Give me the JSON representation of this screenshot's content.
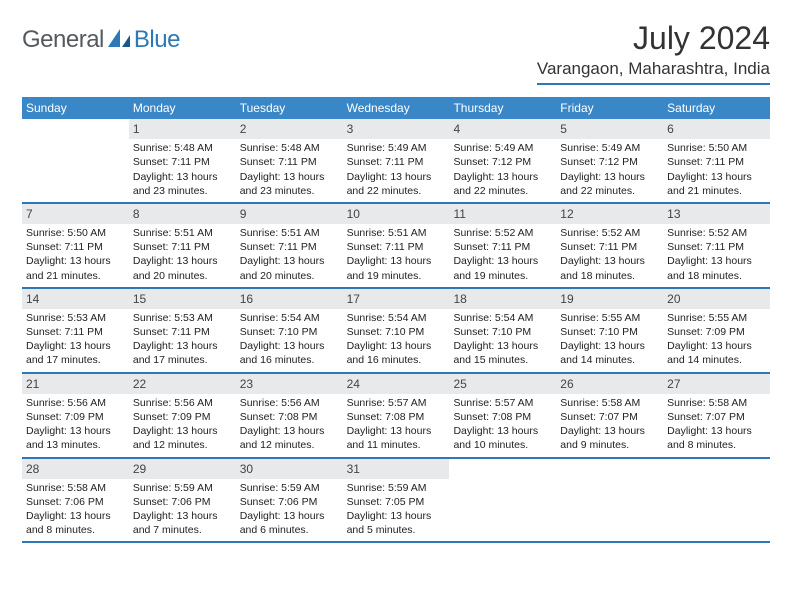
{
  "brand": {
    "text1": "General",
    "text2": "Blue"
  },
  "title": "July 2024",
  "location": "Varangaon, Maharashtra, India",
  "colors": {
    "header_bar": "#3a87c8",
    "divider": "#2f78b7",
    "day_number_bg": "#e8e9ea",
    "text": "#222222",
    "logo_gray": "#555a5f",
    "logo_blue": "#2f78b7"
  },
  "fonts": {
    "title_size_pt": 24,
    "location_size_pt": 13,
    "day_header_size_pt": 9,
    "cell_size_pt": 8
  },
  "day_headers": [
    "Sunday",
    "Monday",
    "Tuesday",
    "Wednesday",
    "Thursday",
    "Friday",
    "Saturday"
  ],
  "weeks": [
    [
      null,
      {
        "n": "1",
        "sunrise": "5:48 AM",
        "sunset": "7:11 PM",
        "dl": "13 hours and 23 minutes."
      },
      {
        "n": "2",
        "sunrise": "5:48 AM",
        "sunset": "7:11 PM",
        "dl": "13 hours and 23 minutes."
      },
      {
        "n": "3",
        "sunrise": "5:49 AM",
        "sunset": "7:11 PM",
        "dl": "13 hours and 22 minutes."
      },
      {
        "n": "4",
        "sunrise": "5:49 AM",
        "sunset": "7:12 PM",
        "dl": "13 hours and 22 minutes."
      },
      {
        "n": "5",
        "sunrise": "5:49 AM",
        "sunset": "7:12 PM",
        "dl": "13 hours and 22 minutes."
      },
      {
        "n": "6",
        "sunrise": "5:50 AM",
        "sunset": "7:11 PM",
        "dl": "13 hours and 21 minutes."
      }
    ],
    [
      {
        "n": "7",
        "sunrise": "5:50 AM",
        "sunset": "7:11 PM",
        "dl": "13 hours and 21 minutes."
      },
      {
        "n": "8",
        "sunrise": "5:51 AM",
        "sunset": "7:11 PM",
        "dl": "13 hours and 20 minutes."
      },
      {
        "n": "9",
        "sunrise": "5:51 AM",
        "sunset": "7:11 PM",
        "dl": "13 hours and 20 minutes."
      },
      {
        "n": "10",
        "sunrise": "5:51 AM",
        "sunset": "7:11 PM",
        "dl": "13 hours and 19 minutes."
      },
      {
        "n": "11",
        "sunrise": "5:52 AM",
        "sunset": "7:11 PM",
        "dl": "13 hours and 19 minutes."
      },
      {
        "n": "12",
        "sunrise": "5:52 AM",
        "sunset": "7:11 PM",
        "dl": "13 hours and 18 minutes."
      },
      {
        "n": "13",
        "sunrise": "5:52 AM",
        "sunset": "7:11 PM",
        "dl": "13 hours and 18 minutes."
      }
    ],
    [
      {
        "n": "14",
        "sunrise": "5:53 AM",
        "sunset": "7:11 PM",
        "dl": "13 hours and 17 minutes."
      },
      {
        "n": "15",
        "sunrise": "5:53 AM",
        "sunset": "7:11 PM",
        "dl": "13 hours and 17 minutes."
      },
      {
        "n": "16",
        "sunrise": "5:54 AM",
        "sunset": "7:10 PM",
        "dl": "13 hours and 16 minutes."
      },
      {
        "n": "17",
        "sunrise": "5:54 AM",
        "sunset": "7:10 PM",
        "dl": "13 hours and 16 minutes."
      },
      {
        "n": "18",
        "sunrise": "5:54 AM",
        "sunset": "7:10 PM",
        "dl": "13 hours and 15 minutes."
      },
      {
        "n": "19",
        "sunrise": "5:55 AM",
        "sunset": "7:10 PM",
        "dl": "13 hours and 14 minutes."
      },
      {
        "n": "20",
        "sunrise": "5:55 AM",
        "sunset": "7:09 PM",
        "dl": "13 hours and 14 minutes."
      }
    ],
    [
      {
        "n": "21",
        "sunrise": "5:56 AM",
        "sunset": "7:09 PM",
        "dl": "13 hours and 13 minutes."
      },
      {
        "n": "22",
        "sunrise": "5:56 AM",
        "sunset": "7:09 PM",
        "dl": "13 hours and 12 minutes."
      },
      {
        "n": "23",
        "sunrise": "5:56 AM",
        "sunset": "7:08 PM",
        "dl": "13 hours and 12 minutes."
      },
      {
        "n": "24",
        "sunrise": "5:57 AM",
        "sunset": "7:08 PM",
        "dl": "13 hours and 11 minutes."
      },
      {
        "n": "25",
        "sunrise": "5:57 AM",
        "sunset": "7:08 PM",
        "dl": "13 hours and 10 minutes."
      },
      {
        "n": "26",
        "sunrise": "5:58 AM",
        "sunset": "7:07 PM",
        "dl": "13 hours and 9 minutes."
      },
      {
        "n": "27",
        "sunrise": "5:58 AM",
        "sunset": "7:07 PM",
        "dl": "13 hours and 8 minutes."
      }
    ],
    [
      {
        "n": "28",
        "sunrise": "5:58 AM",
        "sunset": "7:06 PM",
        "dl": "13 hours and 8 minutes."
      },
      {
        "n": "29",
        "sunrise": "5:59 AM",
        "sunset": "7:06 PM",
        "dl": "13 hours and 7 minutes."
      },
      {
        "n": "30",
        "sunrise": "5:59 AM",
        "sunset": "7:06 PM",
        "dl": "13 hours and 6 minutes."
      },
      {
        "n": "31",
        "sunrise": "5:59 AM",
        "sunset": "7:05 PM",
        "dl": "13 hours and 5 minutes."
      },
      null,
      null,
      null
    ]
  ],
  "labels": {
    "sunrise": "Sunrise:",
    "sunset": "Sunset:",
    "daylight": "Daylight:"
  }
}
